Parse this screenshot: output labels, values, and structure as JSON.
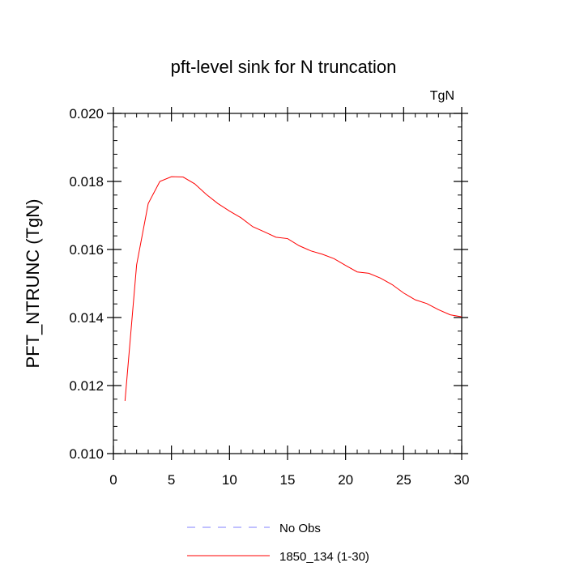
{
  "chart_data": {
    "type": "line",
    "title": "pft-level sink for N truncation",
    "units_label": "TgN",
    "xlabel": "",
    "ylabel": "PFT_NTRUNC  (TgN)",
    "xlim": [
      0,
      30
    ],
    "ylim": [
      0.01,
      0.02
    ],
    "x_ticks": [
      0,
      5,
      10,
      15,
      20,
      25,
      30
    ],
    "y_ticks": [
      0.01,
      0.012,
      0.014,
      0.016,
      0.018,
      0.02
    ],
    "x_tick_labels": [
      "0",
      "5",
      "10",
      "15",
      "20",
      "25",
      "30"
    ],
    "y_tick_labels": [
      "0.010",
      "0.012",
      "0.014",
      "0.016",
      "0.018",
      "0.020"
    ],
    "grid": false,
    "legend_position": "bottom",
    "series": [
      {
        "name": "1850_134 (1-30)",
        "color": "#ff0000",
        "x": [
          1,
          2,
          3,
          4,
          5,
          6,
          7,
          8,
          9,
          10,
          11,
          12,
          13,
          14,
          15,
          16,
          17,
          18,
          19,
          20,
          21,
          22,
          23,
          24,
          25,
          26,
          27,
          28,
          29,
          30
        ],
        "values": [
          0.01155,
          0.01555,
          0.01735,
          0.018,
          0.01814,
          0.01813,
          0.01793,
          0.01762,
          0.01735,
          0.01713,
          0.01693,
          0.01667,
          0.01652,
          0.01636,
          0.01632,
          0.01611,
          0.01596,
          0.01586,
          0.01573,
          0.01553,
          0.01534,
          0.0153,
          0.01516,
          0.01497,
          0.01472,
          0.01452,
          0.01441,
          0.01423,
          0.01408,
          0.01402
        ]
      }
    ],
    "legend": [
      {
        "label": "No Obs",
        "color": "#8080ff",
        "style": "dashed"
      },
      {
        "label": "1850_134 (1-30)",
        "color": "#ff0000",
        "style": "solid"
      }
    ]
  }
}
